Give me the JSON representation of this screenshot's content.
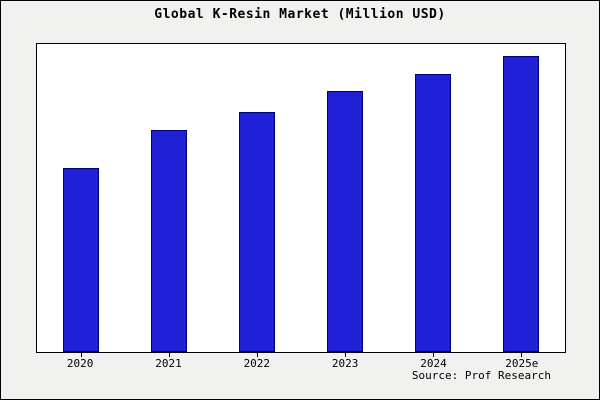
{
  "chart_data": {
    "type": "bar",
    "title": "Global K-Resin Market (Million USD)",
    "categories": [
      "2020",
      "2021",
      "2022",
      "2023",
      "2024",
      "2025e"
    ],
    "values": [
      62,
      75,
      81,
      88,
      94,
      100
    ],
    "xlabel": "",
    "ylabel": "",
    "ylim": [
      0,
      104
    ],
    "grid": false,
    "legend": "none"
  },
  "source": "Source: Prof Research",
  "colors": {
    "bar_fill": "#1f1fd6",
    "bar_edge": "#00007a",
    "plot_bg": "#ffffff",
    "figure_bg": "#f1f1ef"
  }
}
